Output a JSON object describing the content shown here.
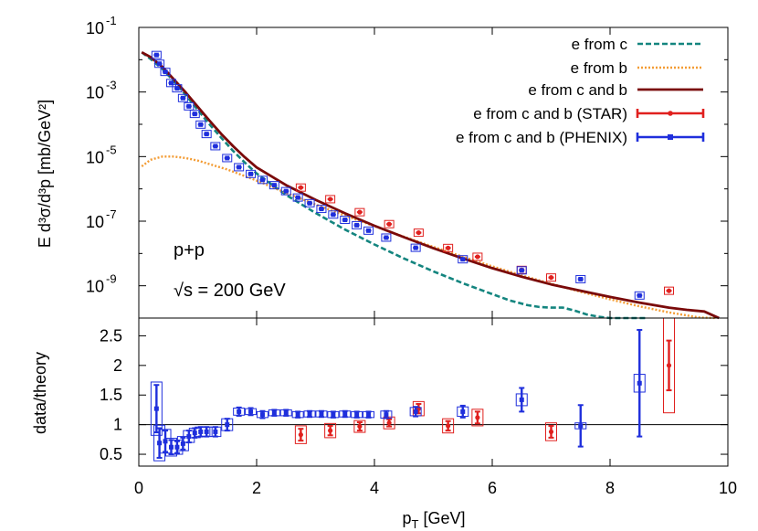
{
  "chart_data": [
    {
      "type": "line",
      "panel": "top",
      "xlabel_main": "p",
      "xlabel_sub": "T",
      "xlabel_rest": " [GeV]",
      "ylabel": "E d³σ/d³p [mb/GeV²]",
      "xlim": [
        0,
        10
      ],
      "ylim": [
        1e-10,
        0.1
      ],
      "yscale": "log",
      "yticks": [
        {
          "mant": "10",
          "exp": "-1",
          "value": 0.1
        },
        {
          "mant": "10",
          "exp": "-3",
          "value": 0.001
        },
        {
          "mant": "10",
          "exp": "-5",
          "value": 1e-05
        },
        {
          "mant": "10",
          "exp": "-7",
          "value": 1e-07
        },
        {
          "mant": "10",
          "exp": "-9",
          "value": 1e-09
        }
      ],
      "annotations": {
        "system": "p+p",
        "energy": "√s = 200 GeV"
      },
      "series": [
        {
          "name": "e from c",
          "style": "dashed",
          "color": "#14857f",
          "x": [
            0.05,
            0.2,
            0.4,
            0.6,
            0.8,
            1.0,
            1.2,
            1.4,
            1.6,
            1.8,
            2.0,
            2.5,
            3.0,
            3.5,
            4.0,
            4.5,
            5.0,
            5.5,
            6.0,
            6.3,
            6.6,
            6.8,
            7.0,
            7.2,
            7.4,
            7.6,
            7.8,
            8.0,
            8.2,
            8.4,
            8.6
          ],
          "y": [
            0.017,
            0.0105,
            0.0052,
            0.0021,
            0.0008,
            0.00028,
            0.0001,
            3.8e-05,
            1.5e-05,
            6.5e-06,
            3e-06,
            6.5e-07,
            1.8e-07,
            5.5e-08,
            1.9e-08,
            7e-09,
            2.8e-09,
            1.2e-09,
            5.5e-10,
            3.5e-10,
            2.5e-10,
            2.2e-10,
            2.1e-10,
            2.1e-10,
            1.7e-10,
            1.3e-10,
            1.1e-10,
            1e-10,
            1e-10,
            1e-10,
            1e-10
          ]
        },
        {
          "name": "e from b",
          "style": "dotted",
          "color": "#f39c34",
          "x": [
            0.05,
            0.2,
            0.4,
            0.6,
            0.8,
            1.0,
            1.5,
            2.0,
            2.5,
            3.0,
            3.5,
            4.0,
            4.5,
            5.0,
            5.5,
            6.0,
            6.5,
            7.0,
            7.5,
            8.0,
            8.5,
            9.0,
            9.5,
            9.8
          ],
          "y": [
            5e-06,
            8e-06,
            1e-05,
            1e-05,
            9e-06,
            7.5e-06,
            4e-06,
            1.8e-06,
            7.5e-07,
            3.3e-07,
            1.5e-07,
            7e-08,
            3.3e-08,
            1.6e-08,
            8e-09,
            4e-09,
            2.1e-09,
            1.15e-09,
            6.5e-10,
            3.8e-10,
            2.3e-10,
            1.5e-10,
            1.05e-10,
            1e-10
          ]
        },
        {
          "name": "e from c and b",
          "style": "solid",
          "color": "#7a0a0a",
          "x": [
            0.05,
            0.2,
            0.4,
            0.6,
            0.8,
            1.0,
            1.2,
            1.4,
            1.6,
            1.8,
            2.0,
            2.5,
            3.0,
            3.5,
            4.0,
            4.5,
            5.0,
            5.5,
            6.0,
            6.5,
            7.0,
            7.5,
            8.0,
            8.5,
            9.0,
            9.3,
            9.6,
            9.75,
            9.85
          ],
          "y": [
            0.017,
            0.012,
            0.006,
            0.0024,
            0.00095,
            0.00035,
            0.00013,
            5e-05,
            2.1e-05,
            9.5e-06,
            4.6e-06,
            1.3e-06,
            4.6e-07,
            1.75e-07,
            7.2e-08,
            3.2e-08,
            1.45e-08,
            7e-09,
            3.5e-09,
            1.9e-09,
            1.1e-09,
            7e-10,
            4.5e-10,
            3e-10,
            2.1e-10,
            1.8e-10,
            1.6e-10,
            1.2e-10,
            1e-10
          ]
        },
        {
          "name": "e from c and b (STAR)",
          "style": "errorbars",
          "color": "#e0201e",
          "x": [
            2.75,
            3.25,
            3.75,
            4.25,
            4.75,
            5.25,
            5.75,
            6.5,
            7.0,
            9.0
          ],
          "y": [
            1.1e-06,
            4.8e-07,
            1.9e-07,
            8.1e-08,
            4.4e-08,
            1.48e-08,
            7.9e-09,
            3.1e-09,
            1.8e-09,
            7e-10
          ]
        },
        {
          "name": "e from c and b (PHENIX)",
          "style": "errorbars",
          "color": "#1f2fdc",
          "x": [
            0.3,
            0.35,
            0.45,
            0.55,
            0.65,
            0.75,
            0.85,
            0.95,
            1.05,
            1.15,
            1.3,
            1.5,
            1.7,
            1.9,
            2.1,
            2.3,
            2.5,
            2.7,
            2.9,
            3.1,
            3.3,
            3.5,
            3.7,
            3.9,
            4.2,
            4.7,
            5.5,
            6.5,
            7.5,
            8.5
          ],
          "y": [
            0.014,
            0.0075,
            0.0042,
            0.0019,
            0.0013,
            0.00065,
            0.00036,
            0.00021,
            9.8e-05,
            5e-05,
            2.1e-05,
            9e-06,
            4.7e-06,
            2.9e-06,
            1.9e-06,
            1.3e-06,
            8.5e-07,
            5.4e-07,
            3.6e-07,
            2.4e-07,
            1.6e-07,
            1.1e-07,
            7.5e-08,
            5.1e-08,
            3.1e-08,
            1.5e-08,
            6.6e-09,
            3e-09,
            1.6e-09,
            5e-10
          ]
        }
      ]
    },
    {
      "type": "scatter",
      "panel": "bottom",
      "ylabel": "data/theory",
      "xlabel": "p_T [GeV]",
      "xlim": [
        0,
        10
      ],
      "ylim": [
        0.3,
        2.8
      ],
      "xticks": [
        "0",
        "2",
        "4",
        "6",
        "8",
        "10"
      ],
      "xtick_values": [
        0,
        2,
        4,
        6,
        8,
        10
      ],
      "yticks": [
        "0.5",
        "1",
        "1.5",
        "2",
        "2.5"
      ],
      "ytick_values": [
        0.5,
        1,
        1.5,
        2,
        2.5
      ],
      "reference_line": 1,
      "series": [
        {
          "name": "STAR",
          "color": "#e0201e",
          "x": [
            2.75,
            3.25,
            3.75,
            4.25,
            4.75,
            5.25,
            5.75,
            7.0,
            9.0
          ],
          "y": [
            0.83,
            0.9,
            0.97,
            1.03,
            1.27,
            0.98,
            1.12,
            0.88,
            2.0
          ],
          "err": [
            0.1,
            0.08,
            0.07,
            0.06,
            0.08,
            0.08,
            0.1,
            0.1,
            0.42
          ],
          "sys": [
            0.15,
            0.12,
            0.1,
            0.1,
            0.12,
            0.12,
            0.14,
            0.15,
            0.8
          ]
        },
        {
          "name": "PHENIX",
          "color": "#1f2fdc",
          "x": [
            0.3,
            0.35,
            0.45,
            0.55,
            0.65,
            0.75,
            0.85,
            0.95,
            1.05,
            1.15,
            1.3,
            1.5,
            1.7,
            1.9,
            2.1,
            2.3,
            2.5,
            2.7,
            2.9,
            3.1,
            3.3,
            3.5,
            3.7,
            3.9,
            4.2,
            4.7,
            5.5,
            6.5,
            7.5,
            8.5
          ],
          "y": [
            1.27,
            0.69,
            0.72,
            0.62,
            0.62,
            0.68,
            0.8,
            0.86,
            0.88,
            0.88,
            0.88,
            1.0,
            1.22,
            1.22,
            1.17,
            1.2,
            1.2,
            1.17,
            1.18,
            1.18,
            1.17,
            1.18,
            1.17,
            1.17,
            1.17,
            1.22,
            1.22,
            1.42,
            0.98,
            1.7
          ],
          "err": [
            0.4,
            0.25,
            0.18,
            0.12,
            0.1,
            0.1,
            0.1,
            0.08,
            0.08,
            0.08,
            0.08,
            0.1,
            0.07,
            0.06,
            0.06,
            0.05,
            0.05,
            0.05,
            0.05,
            0.05,
            0.05,
            0.05,
            0.05,
            0.05,
            0.06,
            0.08,
            0.1,
            0.2,
            0.35,
            0.9
          ],
          "sys": [
            0.45,
            0.3,
            0.2,
            0.15,
            0.12,
            0.12,
            0.1,
            0.08,
            0.08,
            0.08,
            0.08,
            0.1,
            0.06,
            0.05,
            0.05,
            0.05,
            0.05,
            0.05,
            0.05,
            0.05,
            0.05,
            0.05,
            0.05,
            0.05,
            0.06,
            0.07,
            0.08,
            0.1,
            0.05,
            0.15
          ]
        }
      ]
    }
  ]
}
